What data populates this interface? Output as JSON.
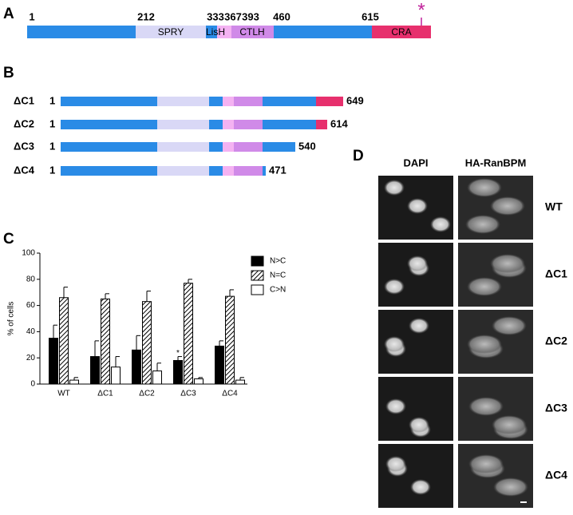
{
  "figure": {
    "panel_a": {
      "letter": "A",
      "positions": [
        1,
        212,
        333,
        367,
        393,
        460,
        615
      ],
      "domains": [
        "SPRY",
        "LisH",
        "CTLH",
        "CRA"
      ],
      "marker": "*"
    },
    "panel_b": {
      "letter": "B",
      "constructs": [
        {
          "name": "ΔC1",
          "start": 1,
          "end": 649
        },
        {
          "name": "ΔC2",
          "start": 1,
          "end": 614
        },
        {
          "name": "ΔC3",
          "start": 1,
          "end": 540
        },
        {
          "name": "ΔC4",
          "start": 1,
          "end": 471
        }
      ]
    },
    "panel_c": {
      "letter": "C"
    },
    "panel_d": {
      "letter": "D",
      "columns": [
        "DAPI",
        "HA-RanBPM"
      ],
      "rows": [
        "WT",
        "ΔC1",
        "ΔC2",
        "ΔC3",
        "ΔC4"
      ]
    }
  },
  "chart_data": {
    "type": "bar",
    "y_label": "% of cells",
    "categories": [
      "WT",
      "ΔC1",
      "ΔC2",
      "ΔC3",
      "ΔC4"
    ],
    "series": [
      {
        "name": "N>C",
        "color": "#000000",
        "hatch": false,
        "values": [
          35,
          21,
          26,
          18,
          29
        ],
        "errors": [
          10,
          12,
          11,
          3,
          4
        ]
      },
      {
        "name": "N=C",
        "color": "#ffffff",
        "hatch": true,
        "values": [
          66,
          65,
          63,
          77,
          67
        ],
        "errors": [
          8,
          4,
          8,
          3,
          5
        ]
      },
      {
        "name": "C>N",
        "color": "#ffffff",
        "hatch": false,
        "values": [
          3,
          13,
          10,
          4,
          3
        ],
        "errors": [
          2,
          8,
          6,
          1,
          2
        ]
      }
    ],
    "annotation": {
      "text": "*",
      "category": "ΔC3",
      "series": "N>C"
    },
    "ylim": [
      0,
      100
    ],
    "yticks": [
      0,
      20,
      40,
      60,
      80,
      100
    ]
  }
}
